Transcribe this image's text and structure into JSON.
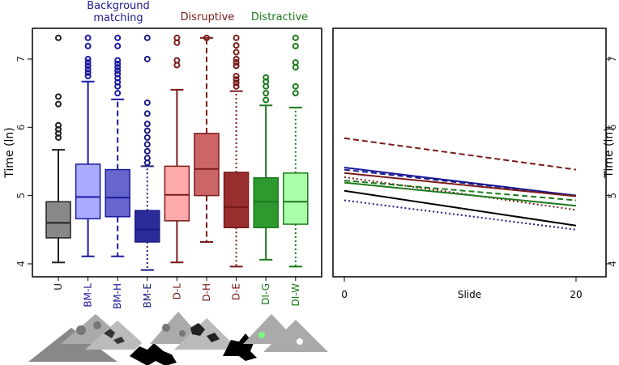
{
  "chart_data": [
    {
      "type": "box",
      "ylabel": "Time (ln)",
      "ylim": [
        3.81,
        7.45
      ],
      "yticks": [
        4,
        5,
        6,
        7
      ],
      "annotations": [
        {
          "text": "Background matching",
          "color": "#1a1a8c"
        },
        {
          "text": "Disruptive",
          "color": "#7a1a1a"
        },
        {
          "text": "Distractive",
          "color": "#1a7a1a"
        }
      ],
      "boxes": [
        {
          "name": "U",
          "color": "#888888",
          "stroke": "#222222",
          "linestyle": "solid",
          "whisker_low": 4.02,
          "q1": 4.38,
          "median": 4.6,
          "q3": 4.91,
          "whisker_high": 5.67,
          "outliers": [
            7.31,
            6.45,
            6.34,
            6.03,
            5.97,
            5.91,
            5.85
          ]
        },
        {
          "name": "BM-L",
          "color": "#aaaaff",
          "stroke": "#1a1aa0",
          "linestyle": "solid",
          "whisker_low": 4.11,
          "q1": 4.66,
          "median": 4.98,
          "q3": 5.46,
          "whisker_high": 6.67,
          "outliers": [
            7.31,
            7.19,
            7.0,
            6.95,
            6.9,
            6.85,
            6.8,
            6.75
          ]
        },
        {
          "name": "BM-H",
          "color": "#6666cc",
          "stroke": "#1a1aa0",
          "linestyle": "dashed",
          "whisker_low": 4.11,
          "q1": 4.69,
          "median": 4.97,
          "q3": 5.38,
          "whisker_high": 6.41,
          "outliers": [
            7.31,
            7.19,
            6.98,
            6.93,
            6.88,
            6.83,
            6.78,
            6.72,
            6.66,
            6.6,
            6.5
          ]
        },
        {
          "name": "BM-E",
          "color": "#2b2b99",
          "stroke": "#1a1a80",
          "linestyle": "dotted",
          "whisker_low": 3.91,
          "q1": 4.32,
          "median": 4.5,
          "q3": 4.78,
          "whisker_high": 5.43,
          "outliers": [
            7.31,
            7.0,
            6.36,
            6.2,
            6.05,
            5.95,
            5.85,
            5.75,
            5.65,
            5.55,
            5.48
          ]
        },
        {
          "name": "D-L",
          "color": "#ffaaaa",
          "stroke": "#7a1a1a",
          "linestyle": "solid",
          "whisker_low": 4.02,
          "q1": 4.63,
          "median": 5.01,
          "q3": 5.43,
          "whisker_high": 6.55,
          "outliers": [
            7.31,
            7.24,
            6.98,
            6.91
          ]
        },
        {
          "name": "D-H",
          "color": "#cc6666",
          "stroke": "#7a1a1a",
          "linestyle": "dashed",
          "whisker_low": 4.32,
          "q1": 5.0,
          "median": 5.39,
          "q3": 5.91,
          "whisker_high": 7.31,
          "outliers": [
            7.31
          ]
        },
        {
          "name": "D-E",
          "color": "#992e2e",
          "stroke": "#7a1a1a",
          "linestyle": "dotted",
          "whisker_low": 3.96,
          "q1": 4.53,
          "median": 4.83,
          "q3": 5.34,
          "whisker_high": 6.53,
          "outliers": [
            7.31,
            7.2,
            7.1,
            7.0,
            6.95,
            6.9,
            6.75,
            6.7,
            6.65,
            6.6
          ]
        },
        {
          "name": "DI-G",
          "color": "#2e992e",
          "stroke": "#1a7a1a",
          "linestyle": "solid",
          "whisker_low": 4.06,
          "q1": 4.53,
          "median": 4.91,
          "q3": 5.26,
          "whisker_high": 6.32,
          "outliers": [
            6.73,
            6.67,
            6.6,
            6.5,
            6.4
          ]
        },
        {
          "name": "DI-W",
          "color": "#aaffaa",
          "stroke": "#1a7a1a",
          "linestyle": "dotted",
          "whisker_low": 3.96,
          "q1": 4.58,
          "median": 4.91,
          "q3": 5.33,
          "whisker_high": 6.29,
          "outliers": [
            7.31,
            7.19,
            6.95,
            6.88,
            6.6,
            6.5
          ]
        }
      ]
    },
    {
      "type": "line",
      "xlabel": "Slide",
      "ylabel": "Time (ln)",
      "xlim": [
        -0.98,
        22.59
      ],
      "xticks": [
        0,
        20
      ],
      "ylim": [
        3.81,
        7.45
      ],
      "yticks": [
        4,
        5,
        6,
        7
      ],
      "x": [
        0,
        20
      ],
      "series": [
        {
          "color": "#7a1a1a",
          "linestyle": "dashed",
          "values": [
            5.84,
            5.38
          ]
        },
        {
          "color": "#1a1aa0",
          "linestyle": "solid",
          "values": [
            5.41,
            5.0
          ]
        },
        {
          "color": "#1a1a80",
          "linestyle": "dashed",
          "values": [
            5.38,
            5.0
          ]
        },
        {
          "color": "#7a1a1a",
          "linestyle": "solid",
          "values": [
            5.33,
            4.99
          ]
        },
        {
          "color": "#7a1a1a",
          "linestyle": "dotted",
          "values": [
            5.27,
            4.79
          ]
        },
        {
          "color": "#1a7a1a",
          "linestyle": "dashed",
          "values": [
            5.22,
            4.93
          ]
        },
        {
          "color": "#1a7a1a",
          "linestyle": "solid",
          "values": [
            5.19,
            4.85
          ]
        },
        {
          "color": "#000000",
          "linestyle": "solid",
          "values": [
            5.07,
            4.56
          ]
        },
        {
          "color": "#1a1a80",
          "linestyle": "dotted",
          "values": [
            4.93,
            4.5
          ]
        }
      ]
    }
  ]
}
